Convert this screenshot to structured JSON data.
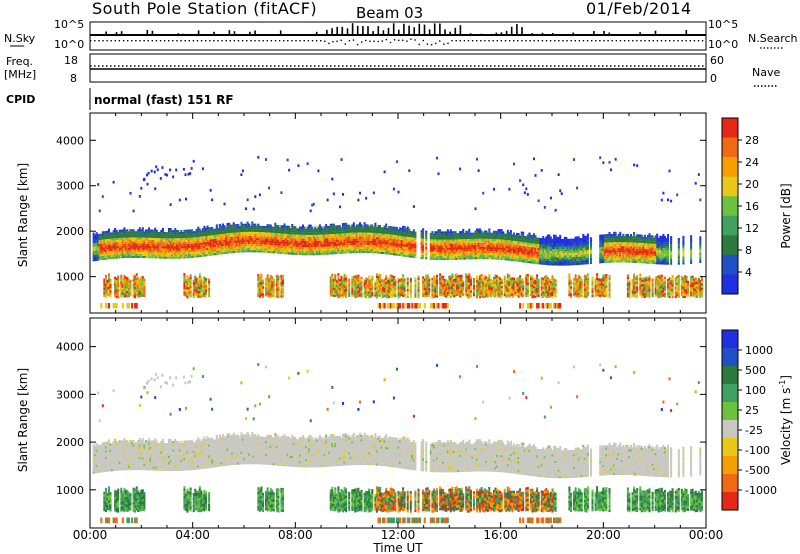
{
  "header": {
    "station": "South Pole Station (fitACF)",
    "beam": "Beam 03",
    "date": "01/Feb/2014"
  },
  "colors": {
    "power_scale": [
      "#2030e0",
      "#1e50c8",
      "#2e7a3c",
      "#3fa060",
      "#6cc23e",
      "#e8c818",
      "#f4a000",
      "#ee6a14",
      "#e62818"
    ],
    "velocity_scale": [
      "#e62818",
      "#ee6a14",
      "#f4a000",
      "#e8c818",
      "#c8c8c0",
      "#6cc23e",
      "#3fa060",
      "#2e7a3c",
      "#1e50c8",
      "#2030e0"
    ]
  },
  "chart_data": [
    {
      "panel": "top-status",
      "type": "line",
      "left_labels": {
        "nsky": "N.Sky",
        "freq_line1": "Freq.",
        "freq_line2": "[MHz]",
        "cpid": "CPID"
      },
      "right_labels": {
        "nsearch": "N.Search",
        "nave": "Nave"
      },
      "nsky_axis_ticks": [
        "10^5",
        "10^0"
      ],
      "nsearch_axis_ticks": [
        "10^5",
        "10^0"
      ],
      "freq_axis_ticks": [
        "18",
        "8"
      ],
      "nave_axis_ticks": [
        "60",
        "0"
      ],
      "cpid_text": "normal (fast) 151 RF"
    },
    {
      "panel": "power",
      "type": "heatmap",
      "ylabel": "Slant Range [km]",
      "ylim": [
        200,
        4600
      ],
      "yticks": [
        "4000",
        "3000",
        "2000",
        "1000"
      ],
      "xlim": [
        0,
        24
      ],
      "xticks": [
        "00:00",
        "04:00",
        "08:00",
        "12:00",
        "16:00",
        "20:00",
        "00:00"
      ],
      "colorbar_label": "Power [dB]",
      "colorbar_ticks": [
        "28",
        "24",
        "20",
        "16",
        "12",
        "8",
        "4"
      ],
      "bands": [
        {
          "range_km": [
            1450,
            2150
          ],
          "intensity": "high (20-28 dB) core near 1650 km, fading to 4-12 dB at edges"
        },
        {
          "range_km": [
            500,
            1000
          ],
          "intensity": "mixed 8-28 dB"
        },
        {
          "range_km": [
            250,
            450
          ],
          "intensity": "sparse 12-28 dB"
        },
        {
          "range_km": [
            2400,
            3600
          ],
          "intensity": "sparse 4-8 dB"
        }
      ]
    },
    {
      "panel": "velocity",
      "type": "heatmap",
      "ylabel": "Slant Range [km]",
      "ylim": [
        200,
        4600
      ],
      "yticks": [
        "4000",
        "3000",
        "2000",
        "1000"
      ],
      "xlim": [
        0,
        24
      ],
      "xticks": [
        "00:00",
        "04:00",
        "08:00",
        "12:00",
        "16:00",
        "20:00",
        "00:00"
      ],
      "xlabel": "Time UT",
      "colorbar_label_main": "Velocity [m s",
      "colorbar_label_exp": "-1",
      "colorbar_label_end": "]",
      "colorbar_ticks": [
        "1000",
        "500",
        "100",
        "25",
        "-25",
        "-100",
        "-500",
        "-1000"
      ],
      "bands": [
        {
          "range_km": [
            1450,
            2150
          ],
          "velocity": "ground scatter (-25 to 25 m/s)"
        },
        {
          "range_km": [
            500,
            1000
          ],
          "velocity": "mixed -1000 to 500 m/s"
        },
        {
          "range_km": [
            2400,
            3600
          ],
          "velocity": "sparse mixed"
        }
      ]
    }
  ]
}
